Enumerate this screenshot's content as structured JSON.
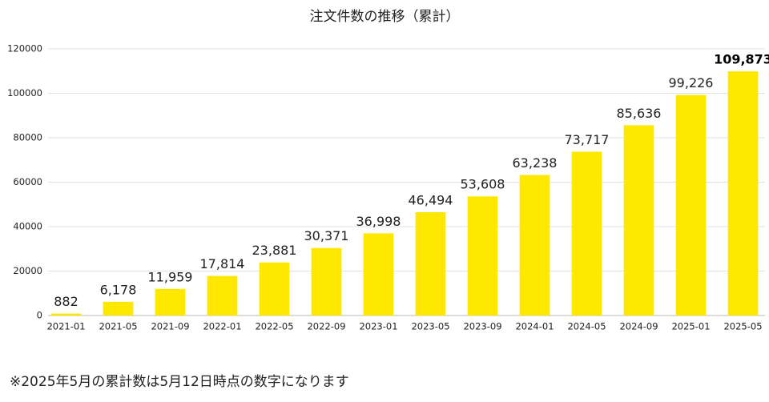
{
  "chart_data": {
    "type": "bar",
    "title": "注文件数の推移（累計）",
    "categories": [
      "2021-01",
      "2021-05",
      "2021-09",
      "2022-01",
      "2022-05",
      "2022-09",
      "2023-01",
      "2023-05",
      "2023-09",
      "2024-01",
      "2024-05",
      "2024-09",
      "2025-01",
      "2025-05"
    ],
    "values": [
      882,
      6178,
      11959,
      17814,
      23881,
      30371,
      36998,
      46494,
      53608,
      63238,
      73717,
      85636,
      99226,
      109873
    ],
    "value_labels": [
      "882",
      "6,178",
      "11,959",
      "17,814",
      "23,881",
      "30,371",
      "36,998",
      "46,494",
      "53,608",
      "63,238",
      "73,717",
      "85,636",
      "99,226",
      "109,873"
    ],
    "color": "#ffe800",
    "ylim": [
      0,
      120000
    ],
    "yticks": [
      0,
      20000,
      40000,
      60000,
      80000,
      100000,
      120000
    ],
    "grid": true,
    "note": "※2025年5月の累計数は5月12日時点の数字になります"
  }
}
